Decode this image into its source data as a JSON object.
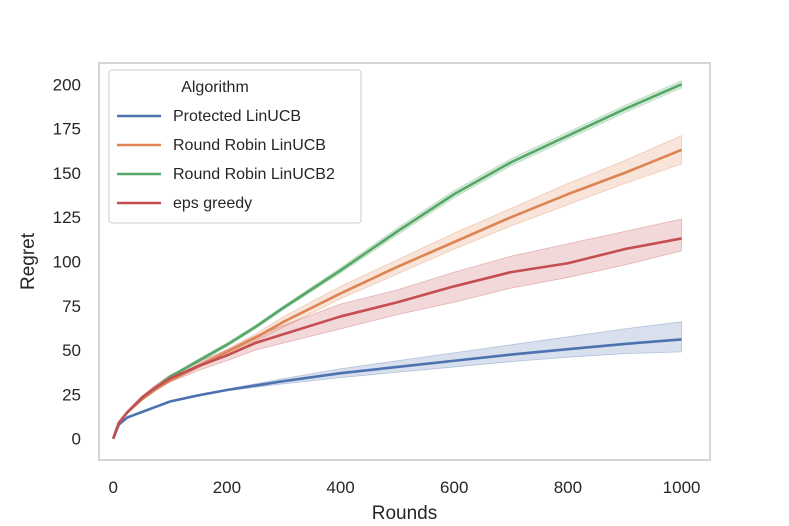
{
  "chart_data": {
    "type": "line",
    "xlabel": "Rounds",
    "ylabel": "Regret",
    "xlim": [
      -25,
      1050
    ],
    "ylim": [
      -12,
      212
    ],
    "xticks": [
      0,
      200,
      400,
      600,
      800,
      1000
    ],
    "yticks": [
      0,
      25,
      50,
      75,
      100,
      125,
      150,
      175,
      200
    ],
    "grid": false,
    "legend": {
      "title": "Algorithm",
      "placement": "top-left"
    },
    "x": [
      0,
      10,
      25,
      50,
      75,
      100,
      150,
      200,
      250,
      300,
      400,
      500,
      600,
      700,
      800,
      900,
      1000
    ],
    "series": [
      {
        "name": "Protected LinUCB",
        "color": "#4c72b0",
        "values": [
          0,
          8,
          12,
          15,
          18,
          21,
          24.5,
          27.5,
          30,
          32.5,
          37,
          40.5,
          44,
          47.5,
          50.5,
          53.5,
          56
        ],
        "lower": [
          0,
          8,
          12,
          15,
          18,
          21,
          24.3,
          27,
          29,
          31,
          34.5,
          37.5,
          40.5,
          43.5,
          46,
          48,
          49
        ],
        "upper": [
          0,
          8,
          12,
          15,
          18,
          21,
          24.7,
          28,
          31,
          34,
          39.5,
          44,
          48.5,
          53,
          57.5,
          62,
          66
        ]
      },
      {
        "name": "Round Robin LinUCB",
        "color": "#dd8452",
        "values": [
          0,
          9,
          15,
          22,
          28,
          33,
          41,
          49,
          57,
          66,
          82,
          97,
          111,
          125,
          138,
          150,
          163
        ],
        "lower": [
          0,
          9,
          15,
          22,
          27,
          32,
          40,
          47.5,
          55,
          63,
          79,
          93,
          107,
          120,
          132,
          144,
          155
        ],
        "upper": [
          0,
          9,
          15,
          22,
          29,
          34,
          42,
          50.5,
          59,
          69,
          86,
          101,
          116,
          130,
          144,
          157,
          171
        ]
      },
      {
        "name": "Round Robin LinUCB2",
        "color": "#55a868",
        "values": [
          0,
          9,
          15,
          23,
          29,
          35,
          44,
          53,
          63,
          74,
          95,
          117,
          138,
          156,
          171,
          186,
          200
        ],
        "lower": [
          0,
          9,
          15,
          23,
          28.5,
          34.5,
          43,
          52,
          62,
          73,
          93.5,
          115,
          136,
          154,
          169,
          184,
          198
        ],
        "upper": [
          0,
          9,
          15,
          23,
          29.5,
          35.5,
          45,
          54,
          64,
          75,
          96.5,
          119,
          140,
          158,
          173,
          188,
          202
        ]
      },
      {
        "name": "eps greedy",
        "color": "#c44e52",
        "values": [
          0,
          9,
          15,
          23,
          29,
          34,
          41,
          47,
          54,
          59,
          69,
          77,
          86,
          94,
          99,
          107,
          113
        ],
        "lower": [
          0,
          9,
          15,
          22,
          27.5,
          32,
          38.5,
          44,
          50,
          54,
          62,
          70,
          77,
          85,
          91,
          98,
          106
        ],
        "upper": [
          0,
          9,
          15,
          24,
          30.5,
          36,
          43.5,
          50,
          58,
          64,
          76,
          84,
          94,
          103,
          110,
          117,
          124
        ]
      }
    ]
  }
}
